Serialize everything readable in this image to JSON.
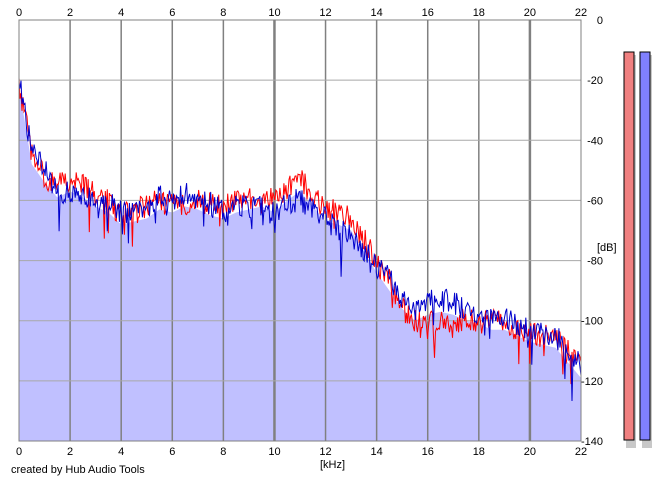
{
  "credit": "created by Hub Audio Tools",
  "chart_data": {
    "type": "area",
    "xlabel": "[kHz]",
    "ylabel": "[dB]",
    "xlim": [
      0,
      22
    ],
    "ylim": [
      -140,
      0
    ],
    "x_ticks": [
      "0",
      "2",
      "4",
      "6",
      "8",
      "10",
      "12",
      "14",
      "16",
      "18",
      "20",
      "22"
    ],
    "y_ticks": [
      "0",
      "-20",
      "-40",
      "-60",
      "-80",
      "-100",
      "-120",
      "-140"
    ],
    "grid": true,
    "x": [
      0,
      0.5,
      1,
      1.5,
      2,
      2.5,
      3,
      3.5,
      4,
      4.5,
      5,
      5.5,
      6,
      6.5,
      7,
      7.5,
      8,
      8.5,
      9,
      9.5,
      10,
      10.5,
      11,
      11.5,
      12,
      12.5,
      13,
      13.5,
      14,
      14.5,
      15,
      15.5,
      16,
      16.5,
      17,
      17.5,
      18,
      18.5,
      19,
      19.5,
      20,
      20.5,
      21,
      21.5,
      22
    ],
    "series": [
      {
        "color": "#ff0000",
        "values": [
          -22,
          -44,
          -52,
          -55,
          -53,
          -55,
          -58,
          -60,
          -65,
          -63,
          -62,
          -60,
          -62,
          -61,
          -60,
          -61,
          -62,
          -60,
          -59,
          -58,
          -60,
          -56,
          -53,
          -58,
          -63,
          -64,
          -66,
          -73,
          -80,
          -86,
          -96,
          -100,
          -100,
          -100,
          -101,
          -99,
          -101,
          -100,
          -101,
          -103,
          -104,
          -105,
          -106,
          -110,
          -115
        ]
      },
      {
        "color": "#0000cc",
        "values": [
          -18,
          -44,
          -50,
          -57,
          -58,
          -58,
          -60,
          -61,
          -64,
          -63,
          -63,
          -59,
          -60,
          -58,
          -59,
          -61,
          -64,
          -62,
          -62,
          -61,
          -64,
          -60,
          -60,
          -62,
          -66,
          -70,
          -72,
          -76,
          -82,
          -86,
          -92,
          -96,
          -94,
          -93,
          -94,
          -96,
          -97,
          -99,
          -99,
          -101,
          -103,
          -104,
          -105,
          -110,
          -115
        ]
      }
    ],
    "fill_color": "#c0c0ff",
    "meters": [
      {
        "color": "#f08080"
      },
      {
        "color": "#8080ff"
      }
    ]
  }
}
